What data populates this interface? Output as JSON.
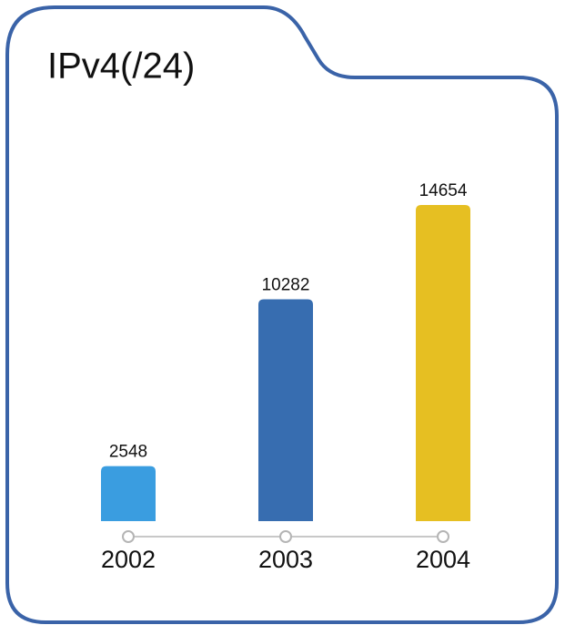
{
  "chart_data": {
    "type": "bar",
    "title": "IPv4(/24)",
    "categories": [
      "2002",
      "2003",
      "2004"
    ],
    "values": [
      2548,
      10282,
      14654
    ],
    "colors": [
      "#3a9de0",
      "#376db0",
      "#e6bf22"
    ]
  }
}
